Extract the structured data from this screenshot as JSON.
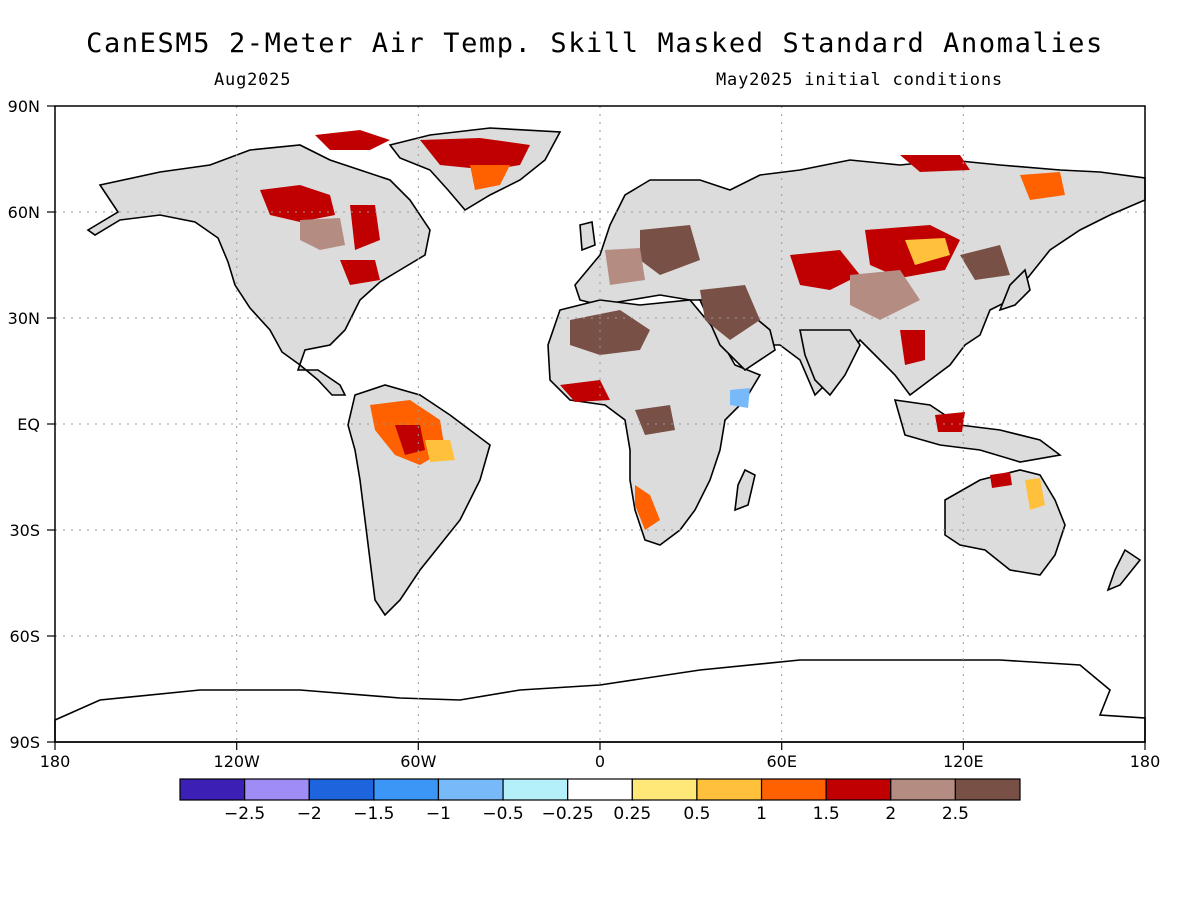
{
  "title": "CanESM5 2-Meter Air Temp. Skill Masked Standard Anomalies",
  "valid_month": "Aug2025",
  "init_label": "May2025 initial conditions",
  "lat_labels": [
    "90N",
    "60N",
    "30N",
    "EQ",
    "30S",
    "60S",
    "90S"
  ],
  "lon_labels": [
    "180",
    "120W",
    "60W",
    "0",
    "60E",
    "120E",
    "180"
  ],
  "colorbar": {
    "labels": [
      "-2.5",
      "-2",
      "-1.5",
      "-1",
      "-0.5",
      "-0.25",
      "0.25",
      "0.5",
      "1",
      "1.5",
      "2",
      "2.5"
    ],
    "colors": [
      "#3c1fb4",
      "#a08cf5",
      "#1e64dc",
      "#3c96f5",
      "#78b9fa",
      "#b4f0fa",
      "#ffffff",
      "#ffe878",
      "#ffc03c",
      "#ff6000",
      "#c00000",
      "#b48c82",
      "#785046"
    ]
  },
  "land_color": "#dcdcdc",
  "icons": {
    "coastline": "coastline-outline"
  }
}
